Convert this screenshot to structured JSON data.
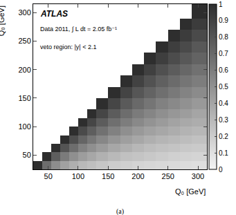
{
  "chart_data": {
    "type": "heatmap",
    "caption": "(a)",
    "annotations": [
      "ATLAS",
      "Data 2011, ∫ L dt = 2.05 fb⁻¹",
      "veto region: |y| < 2.1"
    ],
    "x_label": "Q₀ [GeV]",
    "y_label": "Q₀ [GeV]",
    "xlim": [
      25,
      315
    ],
    "ylim": [
      25,
      315
    ],
    "xticks": [
      50,
      100,
      150,
      200,
      250,
      300
    ],
    "yticks": [
      50,
      100,
      150,
      200,
      250,
      300
    ],
    "xbins": [
      25,
      40,
      55,
      70,
      85,
      100,
      115,
      130,
      150,
      170,
      190,
      210,
      230,
      250,
      270,
      290,
      315
    ],
    "ybins": [
      25,
      40,
      55,
      70,
      85,
      100,
      115,
      130,
      150,
      170,
      190,
      210,
      230,
      250,
      270,
      290,
      315
    ],
    "z": [
      [
        1,
        0.68,
        0.52,
        0.42,
        0.35,
        0.3,
        0.27,
        0.23,
        0.2,
        0.18,
        0.16,
        0.15,
        0.14,
        0.13,
        0.12,
        0.11
      ],
      [
        null,
        1,
        0.76,
        0.61,
        0.51,
        0.44,
        0.39,
        0.34,
        0.3,
        0.26,
        0.24,
        0.22,
        0.2,
        0.18,
        0.17,
        0.16
      ],
      [
        null,
        null,
        1,
        0.81,
        0.68,
        0.58,
        0.51,
        0.45,
        0.39,
        0.35,
        0.31,
        0.28,
        0.26,
        0.24,
        0.22,
        0.21
      ],
      [
        null,
        null,
        null,
        1,
        0.84,
        0.72,
        0.63,
        0.55,
        0.48,
        0.43,
        0.39,
        0.35,
        0.32,
        0.3,
        0.28,
        0.26
      ],
      [
        null,
        null,
        null,
        null,
        1,
        0.86,
        0.76,
        0.66,
        0.58,
        0.51,
        0.46,
        0.42,
        0.39,
        0.36,
        0.33,
        0.31
      ],
      [
        null,
        null,
        null,
        null,
        null,
        1,
        0.88,
        0.77,
        0.67,
        0.6,
        0.54,
        0.49,
        0.45,
        0.41,
        0.38,
        0.36
      ],
      [
        null,
        null,
        null,
        null,
        null,
        null,
        1,
        0.88,
        0.77,
        0.68,
        0.61,
        0.56,
        0.51,
        0.47,
        0.44,
        0.4
      ],
      [
        null,
        null,
        null,
        null,
        null,
        null,
        null,
        1,
        0.88,
        0.78,
        0.7,
        0.64,
        0.58,
        0.54,
        0.5,
        0.46
      ],
      [
        null,
        null,
        null,
        null,
        null,
        null,
        null,
        null,
        1,
        0.89,
        0.8,
        0.73,
        0.67,
        0.62,
        0.57,
        0.53
      ],
      [
        null,
        null,
        null,
        null,
        null,
        null,
        null,
        null,
        null,
        1,
        0.9,
        0.82,
        0.75,
        0.69,
        0.64,
        0.6
      ],
      [
        null,
        null,
        null,
        null,
        null,
        null,
        null,
        null,
        null,
        null,
        1,
        0.91,
        0.83,
        0.77,
        0.71,
        0.66
      ],
      [
        null,
        null,
        null,
        null,
        null,
        null,
        null,
        null,
        null,
        null,
        null,
        1,
        0.92,
        0.85,
        0.79,
        0.73
      ],
      [
        null,
        null,
        null,
        null,
        null,
        null,
        null,
        null,
        null,
        null,
        null,
        null,
        1,
        0.92,
        0.86,
        0.79
      ],
      [
        null,
        null,
        null,
        null,
        null,
        null,
        null,
        null,
        null,
        null,
        null,
        null,
        null,
        1,
        0.93,
        0.86
      ],
      [
        null,
        null,
        null,
        null,
        null,
        null,
        null,
        null,
        null,
        null,
        null,
        null,
        null,
        null,
        1,
        0.93
      ],
      [
        null,
        null,
        null,
        null,
        null,
        null,
        null,
        null,
        null,
        null,
        null,
        null,
        null,
        null,
        null,
        1
      ]
    ],
    "colorbar": {
      "range": [
        0,
        1
      ],
      "ticks": [
        0,
        0.1,
        0.2,
        0.3,
        0.4,
        0.5,
        0.6,
        0.7,
        0.8,
        0.9,
        1
      ]
    }
  }
}
